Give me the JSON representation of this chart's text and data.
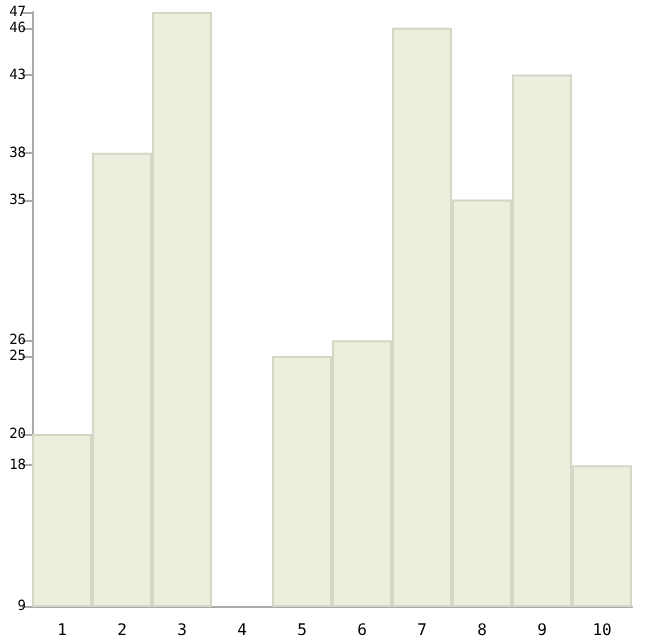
{
  "chart_data": {
    "type": "bar",
    "categories": [
      "1",
      "2",
      "3",
      "4",
      "5",
      "6",
      "7",
      "8",
      "9",
      "10"
    ],
    "values": [
      20,
      38,
      47,
      9,
      25,
      26,
      46,
      35,
      43,
      18
    ],
    "color": "#eeeedf",
    "ylim": [
      9,
      47
    ],
    "yticks": [
      9,
      18,
      20,
      25,
      26,
      35,
      38,
      43,
      46,
      47
    ],
    "grid": false
  }
}
